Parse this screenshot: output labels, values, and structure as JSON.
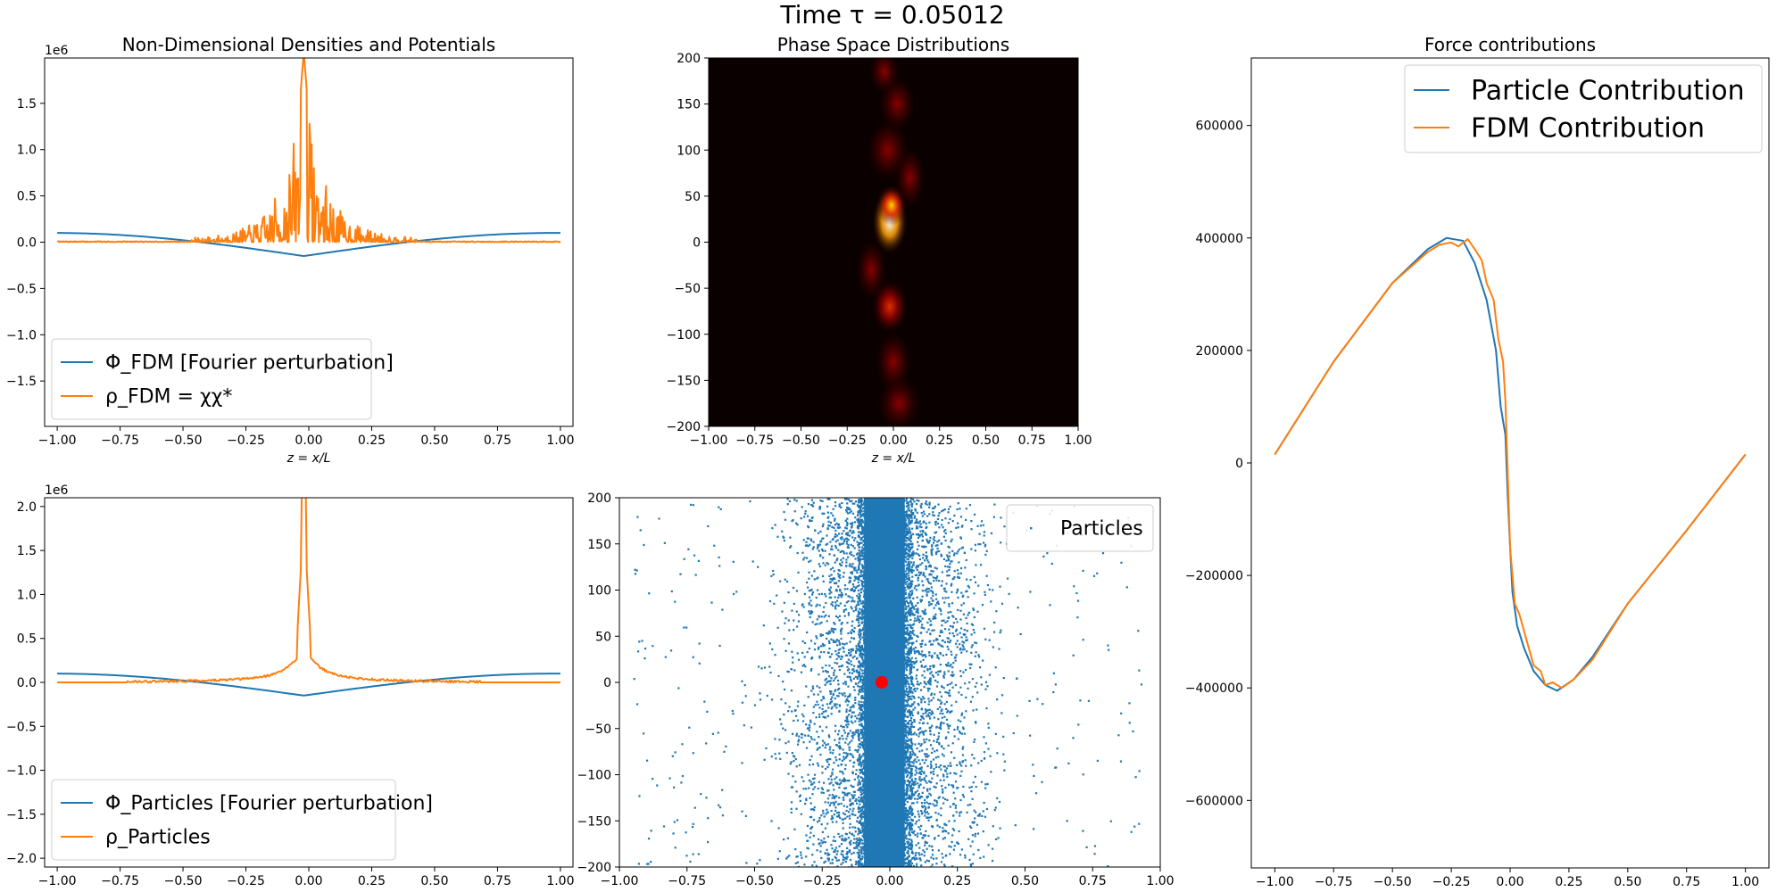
{
  "figure": {
    "suptitle": "Time τ = 0.05012",
    "colors": {
      "blue": "#1f77b4",
      "orange": "#ff7f0e",
      "red": "#ff0000"
    }
  },
  "chart_data": [
    {
      "id": "densities-fdm",
      "type": "line",
      "title": "Non-Dimensional Densities and Potentials",
      "xlabel": "z = x/L",
      "ylabel": "",
      "offset_label": "1e6",
      "xlim": [
        -1.05,
        1.05
      ],
      "ylim": [
        -1.99,
        1.99
      ],
      "xticks": [
        -1.0,
        -0.75,
        -0.5,
        -0.25,
        0.0,
        0.25,
        0.5,
        0.75,
        1.0
      ],
      "xtick_labels": [
        "−1.00",
        "−0.75",
        "−0.50",
        "−0.25",
        "0.00",
        "0.25",
        "0.50",
        "0.75",
        "1.00"
      ],
      "yticks": [
        -1.5,
        -1.0,
        -0.5,
        0.0,
        0.5,
        1.0,
        1.5
      ],
      "ytick_labels": [
        "−1.5",
        "−1.0",
        "−0.5",
        "0.0",
        "0.5",
        "1.0",
        "1.5"
      ],
      "legend": "lower-left",
      "series": [
        {
          "name": "Φ_FDM [Fourier perturbation]",
          "kind": "potential",
          "color": "#1f77b4",
          "min": -0.15,
          "max": 0.1,
          "center": -0.02
        },
        {
          "name": "ρ_FDM = χχ*",
          "kind": "noisy-spike",
          "color": "#ff7f0e",
          "peak": 2.05,
          "center": -0.02,
          "seed": 7
        }
      ]
    },
    {
      "id": "phase-space",
      "type": "heatmap",
      "title": "Phase Space Distributions",
      "xlabel": "z = x/L",
      "ylabel": "",
      "xlim": [
        -1.0,
        1.0
      ],
      "ylim": [
        -200,
        200
      ],
      "xticks": [
        -1.0,
        -0.75,
        -0.5,
        -0.25,
        0.0,
        0.25,
        0.5,
        0.75,
        1.0
      ],
      "xtick_labels": [
        "−1.00",
        "−0.75",
        "−0.50",
        "−0.25",
        "0.00",
        "0.25",
        "0.50",
        "0.75",
        "1.00"
      ],
      "yticks": [
        -200,
        -150,
        -100,
        -50,
        0,
        50,
        100,
        150,
        200
      ],
      "ytick_labels": [
        "−200",
        "−150",
        "−100",
        "−50",
        "0",
        "50",
        "100",
        "150",
        "200"
      ],
      "colormap": "hot",
      "blobs": [
        {
          "x": -0.02,
          "y": 22,
          "sx": 0.06,
          "sy": 22,
          "amp": 1.0
        },
        {
          "x": -0.01,
          "y": 40,
          "sx": 0.05,
          "sy": 14,
          "amp": 0.7
        },
        {
          "x": -0.02,
          "y": -70,
          "sx": 0.06,
          "sy": 18,
          "amp": 0.45
        },
        {
          "x": 0.0,
          "y": -130,
          "sx": 0.06,
          "sy": 20,
          "amp": 0.28
        },
        {
          "x": -0.03,
          "y": 100,
          "sx": 0.07,
          "sy": 20,
          "amp": 0.3
        },
        {
          "x": 0.02,
          "y": 150,
          "sx": 0.06,
          "sy": 18,
          "amp": 0.22
        },
        {
          "x": -0.05,
          "y": 185,
          "sx": 0.05,
          "sy": 15,
          "amp": 0.2
        },
        {
          "x": 0.03,
          "y": -175,
          "sx": 0.07,
          "sy": 18,
          "amp": 0.2
        },
        {
          "x": -0.12,
          "y": -30,
          "sx": 0.05,
          "sy": 20,
          "amp": 0.18
        },
        {
          "x": 0.09,
          "y": 70,
          "sx": 0.05,
          "sy": 20,
          "amp": 0.15
        }
      ]
    },
    {
      "id": "force",
      "type": "line",
      "title": "Force contributions",
      "xlabel": "",
      "ylabel": "",
      "xlim": [
        -1.1,
        1.1
      ],
      "ylim": [
        -720000,
        720000
      ],
      "xticks": [
        -1.0,
        -0.75,
        -0.5,
        -0.25,
        0.0,
        0.25,
        0.5,
        0.75,
        1.0
      ],
      "xtick_labels": [
        "−1.00",
        "−0.75",
        "−0.50",
        "−0.25",
        "0.00",
        "0.25",
        "0.50",
        "0.75",
        "1.00"
      ],
      "yticks": [
        -600000,
        -400000,
        -200000,
        0,
        200000,
        400000,
        600000
      ],
      "ytick_labels": [
        "−600000",
        "−400000",
        "−200000",
        "0",
        "200000",
        "400000",
        "600000"
      ],
      "legend": "upper-right",
      "series": [
        {
          "name": "Particle Contribution",
          "color": "#1f77b4",
          "x": [
            -1.0,
            -0.75,
            -0.5,
            -0.35,
            -0.27,
            -0.2,
            -0.15,
            -0.1,
            -0.06,
            -0.04,
            -0.02,
            -0.01,
            0.0,
            0.01,
            0.03,
            0.06,
            0.1,
            0.15,
            0.2,
            0.27,
            0.35,
            0.5,
            0.75,
            1.0
          ],
          "y": [
            15000,
            180000,
            320000,
            380000,
            400000,
            395000,
            355000,
            290000,
            200000,
            100000,
            50000,
            -60000,
            -150000,
            -230000,
            -290000,
            -330000,
            -370000,
            -395000,
            -405000,
            -385000,
            -345000,
            -250000,
            -120000,
            15000
          ]
        },
        {
          "name": "FDM Contribution",
          "color": "#ff7f0e",
          "x": [
            -1.0,
            -0.75,
            -0.5,
            -0.35,
            -0.3,
            -0.25,
            -0.22,
            -0.18,
            -0.15,
            -0.12,
            -0.1,
            -0.07,
            -0.05,
            -0.03,
            -0.02,
            -0.01,
            0.0,
            0.01,
            0.02,
            0.04,
            0.06,
            0.08,
            0.1,
            0.13,
            0.15,
            0.18,
            0.22,
            0.27,
            0.35,
            0.5,
            0.75,
            1.0
          ],
          "y": [
            15000,
            180000,
            320000,
            375000,
            388000,
            392000,
            385000,
            398000,
            380000,
            360000,
            320000,
            290000,
            220000,
            180000,
            110000,
            -20000,
            -150000,
            -200000,
            -250000,
            -270000,
            -300000,
            -330000,
            -360000,
            -370000,
            -395000,
            -390000,
            -400000,
            -385000,
            -350000,
            -250000,
            -120000,
            15000
          ]
        }
      ]
    },
    {
      "id": "densities-particles",
      "type": "line",
      "title": "",
      "xlabel": "",
      "ylabel": "",
      "offset_label": "1e6",
      "xlim": [
        -1.05,
        1.05
      ],
      "ylim": [
        -2.1,
        2.1
      ],
      "xticks": [
        -1.0,
        -0.75,
        -0.5,
        -0.25,
        0.0,
        0.25,
        0.5,
        0.75,
        1.0
      ],
      "xtick_labels": [
        "−1.00",
        "−0.75",
        "−0.50",
        "−0.25",
        "0.00",
        "0.25",
        "0.50",
        "0.75",
        "1.00"
      ],
      "yticks": [
        -2.0,
        -1.5,
        -1.0,
        -0.5,
        0.0,
        0.5,
        1.0,
        1.5,
        2.0
      ],
      "ytick_labels": [
        "−2.0",
        "−1.5",
        "−1.0",
        "−0.5",
        "0.0",
        "0.5",
        "1.0",
        "1.5",
        "2.0"
      ],
      "legend": "lower-left",
      "series": [
        {
          "name": "Φ_Particles [Fourier perturbation]",
          "kind": "potential",
          "color": "#1f77b4",
          "min": -0.15,
          "max": 0.1,
          "center": -0.02
        },
        {
          "name": "ρ_Particles",
          "kind": "cusp",
          "color": "#ff7f0e",
          "peak": 2.15,
          "center": -0.02,
          "seed": 3
        }
      ]
    },
    {
      "id": "particles-scatter",
      "type": "scatter",
      "title": "",
      "xlabel": "",
      "ylabel": "",
      "xlim": [
        -1.0,
        1.0
      ],
      "ylim": [
        -200,
        200
      ],
      "xticks": [
        -1.0,
        -0.75,
        -0.5,
        -0.25,
        0.0,
        0.25,
        0.5,
        0.75,
        1.0
      ],
      "xtick_labels": [
        "−1.00",
        "−0.75",
        "−0.50",
        "−0.25",
        "0.00",
        "0.25",
        "0.50",
        "0.75",
        "1.00"
      ],
      "yticks": [
        -200,
        -150,
        -100,
        -50,
        0,
        50,
        100,
        150,
        200
      ],
      "ytick_labels": [
        "−200",
        "−150",
        "−100",
        "−50",
        "0",
        "50",
        "100",
        "150",
        "200"
      ],
      "legend": "upper-right",
      "series": [
        {
          "name": "Particles",
          "color": "#1f77b4",
          "core_center": -0.02,
          "core_halfwidth": 0.1,
          "spread": 0.3,
          "seed": 11
        }
      ],
      "highlight": {
        "x": -0.03,
        "y": 0,
        "color": "#ff0000"
      }
    }
  ]
}
